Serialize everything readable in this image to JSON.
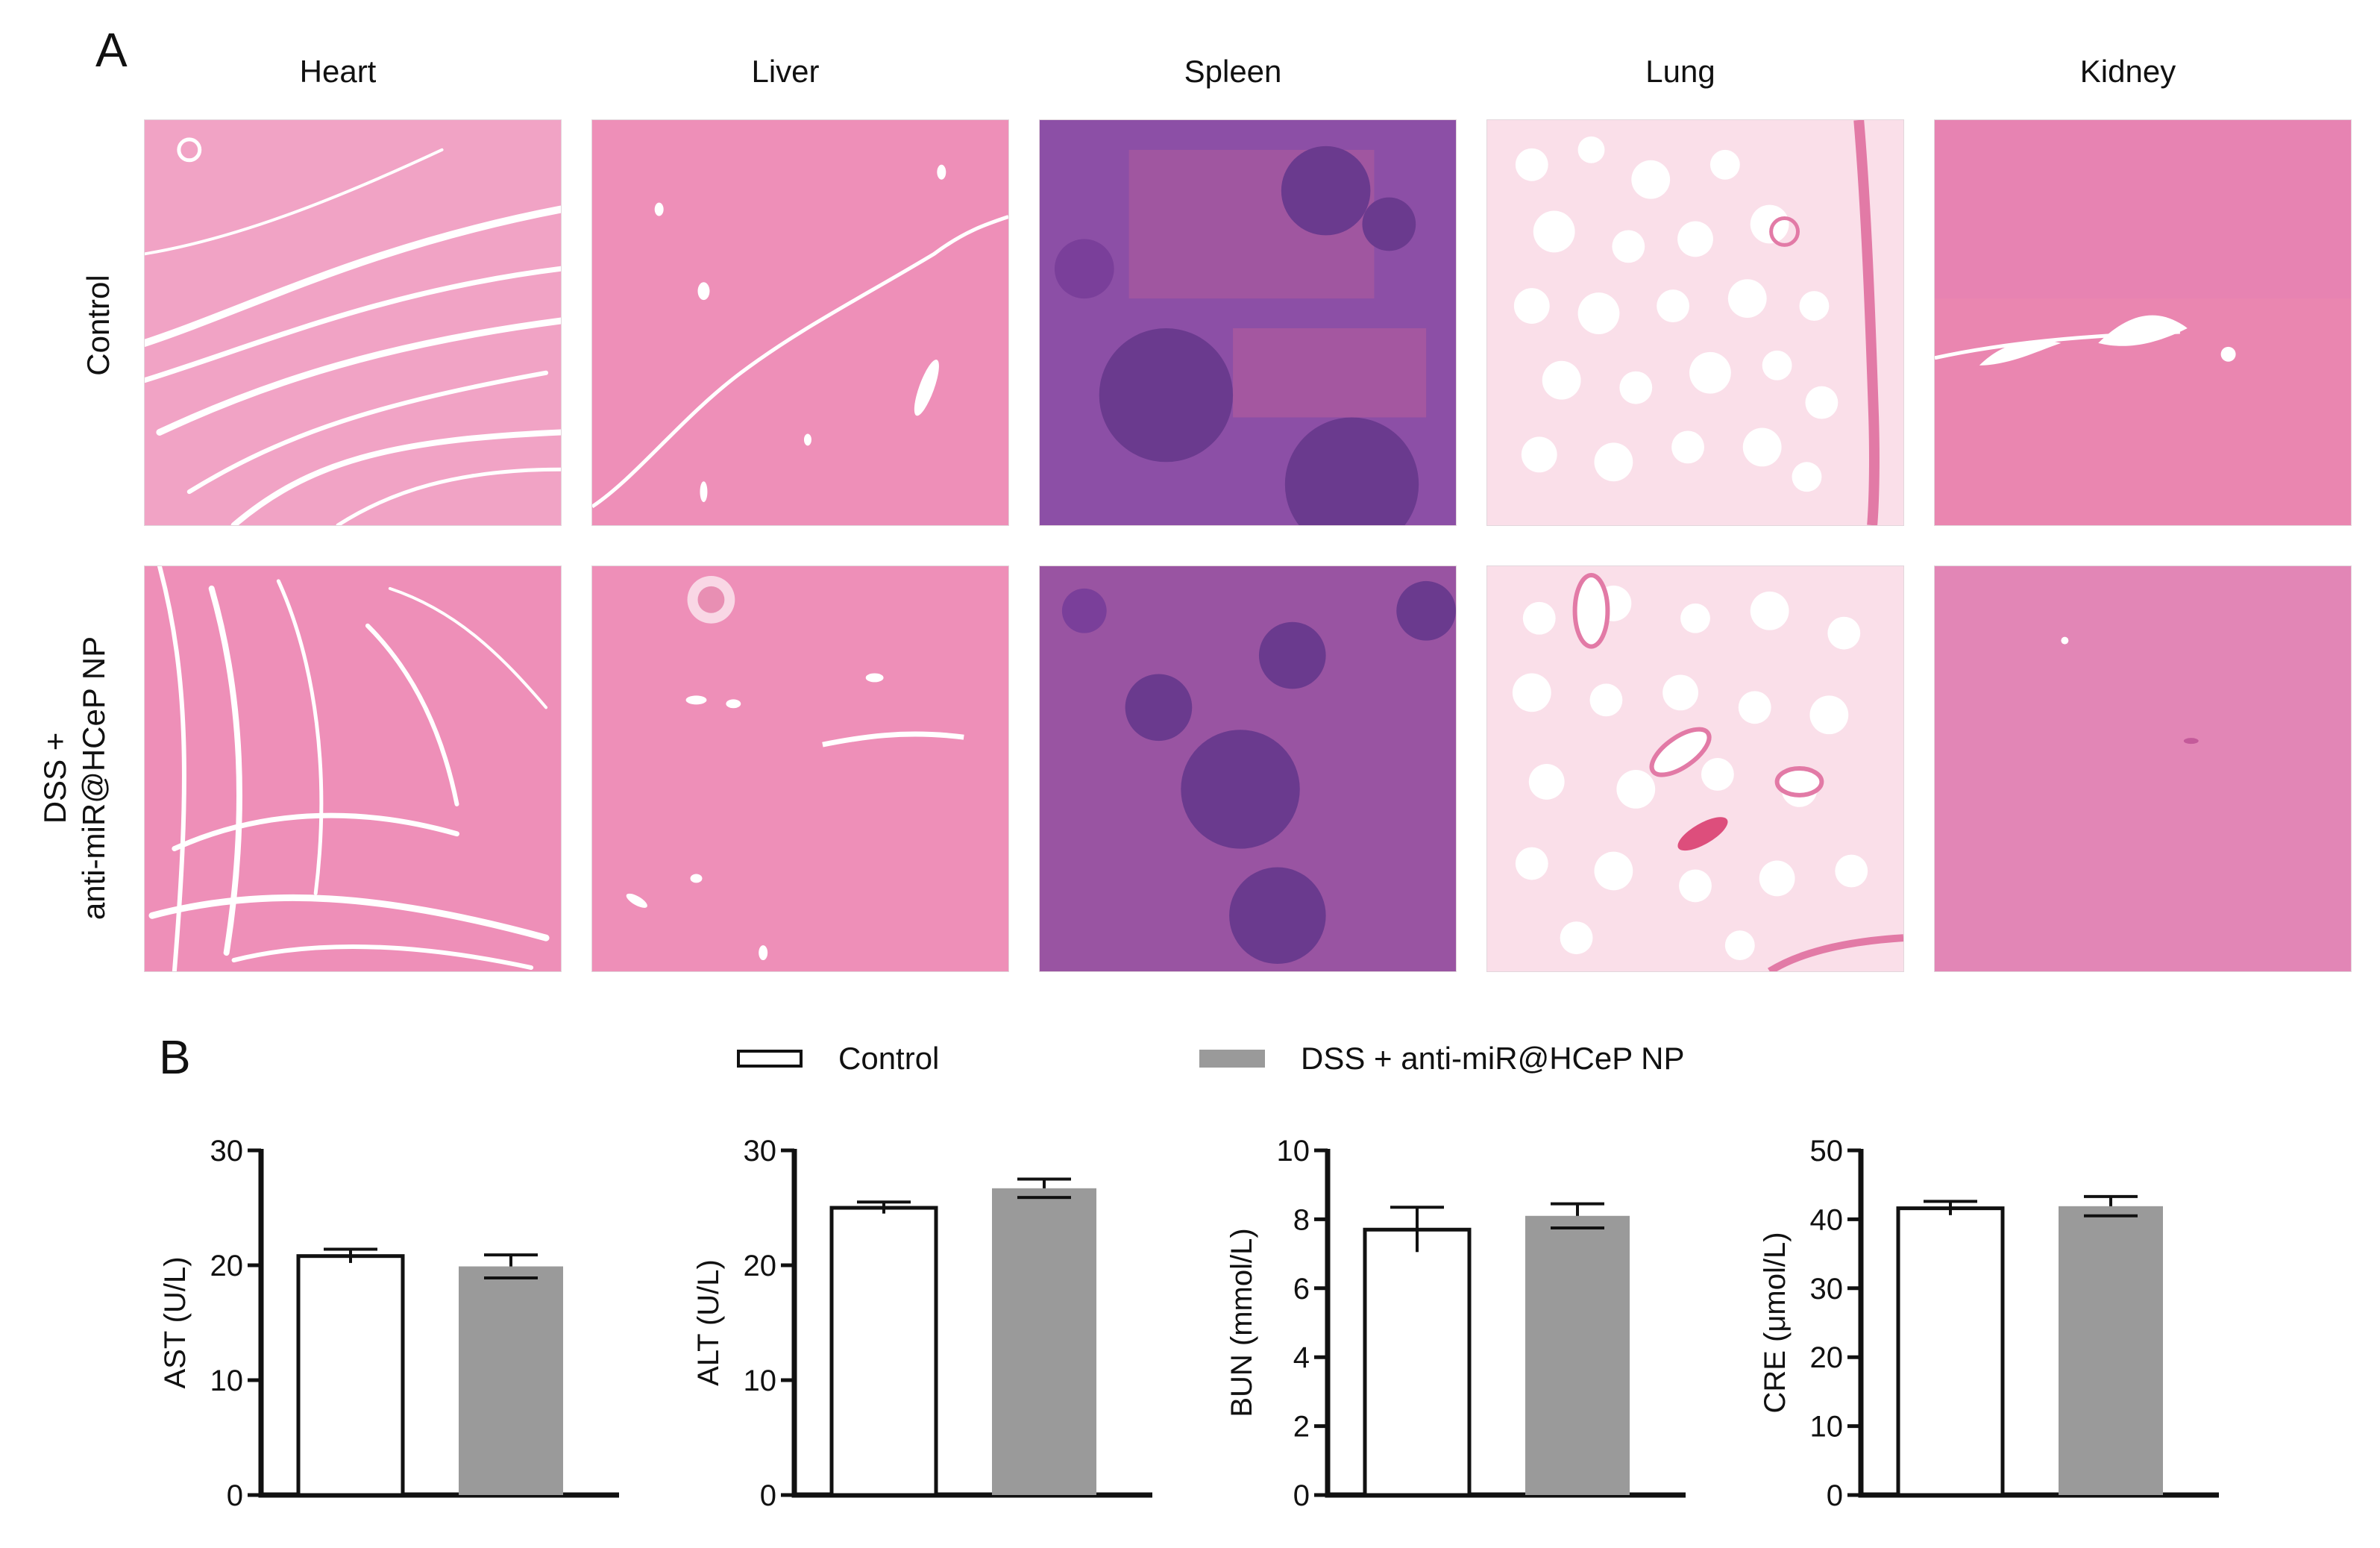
{
  "panel_a": {
    "letter": "A",
    "organs": [
      "Heart",
      "Liver",
      "Spleen",
      "Lung",
      "Kidney"
    ],
    "rows": [
      {
        "lines": [
          "Control"
        ]
      },
      {
        "lines": [
          "DSS +",
          "anti-miR@HCeP NP"
        ]
      }
    ],
    "stain_colors": {
      "pink": "#ee8fb8",
      "pale": "#f6c9dd",
      "purple": "#8c4fa6",
      "dark_purple": "#6a3a8e",
      "white": "#ffffff"
    }
  },
  "panel_b": {
    "letter": "B",
    "legend": [
      {
        "label": "Control",
        "style": "open"
      },
      {
        "label": "DSS + anti-miR@HCeP NP",
        "style": "grey"
      }
    ]
  },
  "chart_data": [
    {
      "type": "bar",
      "categories": [
        "Control",
        "DSS + anti-miR@HCeP NP"
      ],
      "values": [
        20.8,
        19.9
      ],
      "errors": [
        0.6,
        1.0
      ],
      "ylabel": "AST (U/L)",
      "ylim": [
        0,
        30
      ],
      "yticks": [
        0,
        10,
        20,
        30
      ],
      "grid": false
    },
    {
      "type": "bar",
      "categories": [
        "Control",
        "DSS + anti-miR@HCeP NP"
      ],
      "values": [
        25.0,
        26.7
      ],
      "errors": [
        0.5,
        0.8
      ],
      "ylabel": "ALT (U/L)",
      "ylim": [
        0,
        30
      ],
      "yticks": [
        0,
        10,
        20,
        30
      ],
      "grid": false
    },
    {
      "type": "bar",
      "categories": [
        "Control",
        "DSS + anti-miR@HCeP NP"
      ],
      "values": [
        7.7,
        8.1
      ],
      "errors": [
        0.65,
        0.35
      ],
      "ylabel": "BUN (mmol/L)",
      "ylim": [
        0,
        10
      ],
      "yticks": [
        0,
        2,
        4,
        6,
        8,
        10
      ],
      "grid": false
    },
    {
      "type": "bar",
      "categories": [
        "Control",
        "DSS + anti-miR@HCeP NP"
      ],
      "values": [
        41.6,
        41.9
      ],
      "errors": [
        1.0,
        1.4
      ],
      "ylabel": "CRE (μmol/L)",
      "ylim": [
        0,
        50
      ],
      "yticks": [
        0,
        10,
        20,
        30,
        40,
        50
      ],
      "grid": false
    }
  ],
  "bar_colors": {
    "control_fill": "#ffffff",
    "treated_fill": "#9a9a9a",
    "stroke": "#111111"
  }
}
